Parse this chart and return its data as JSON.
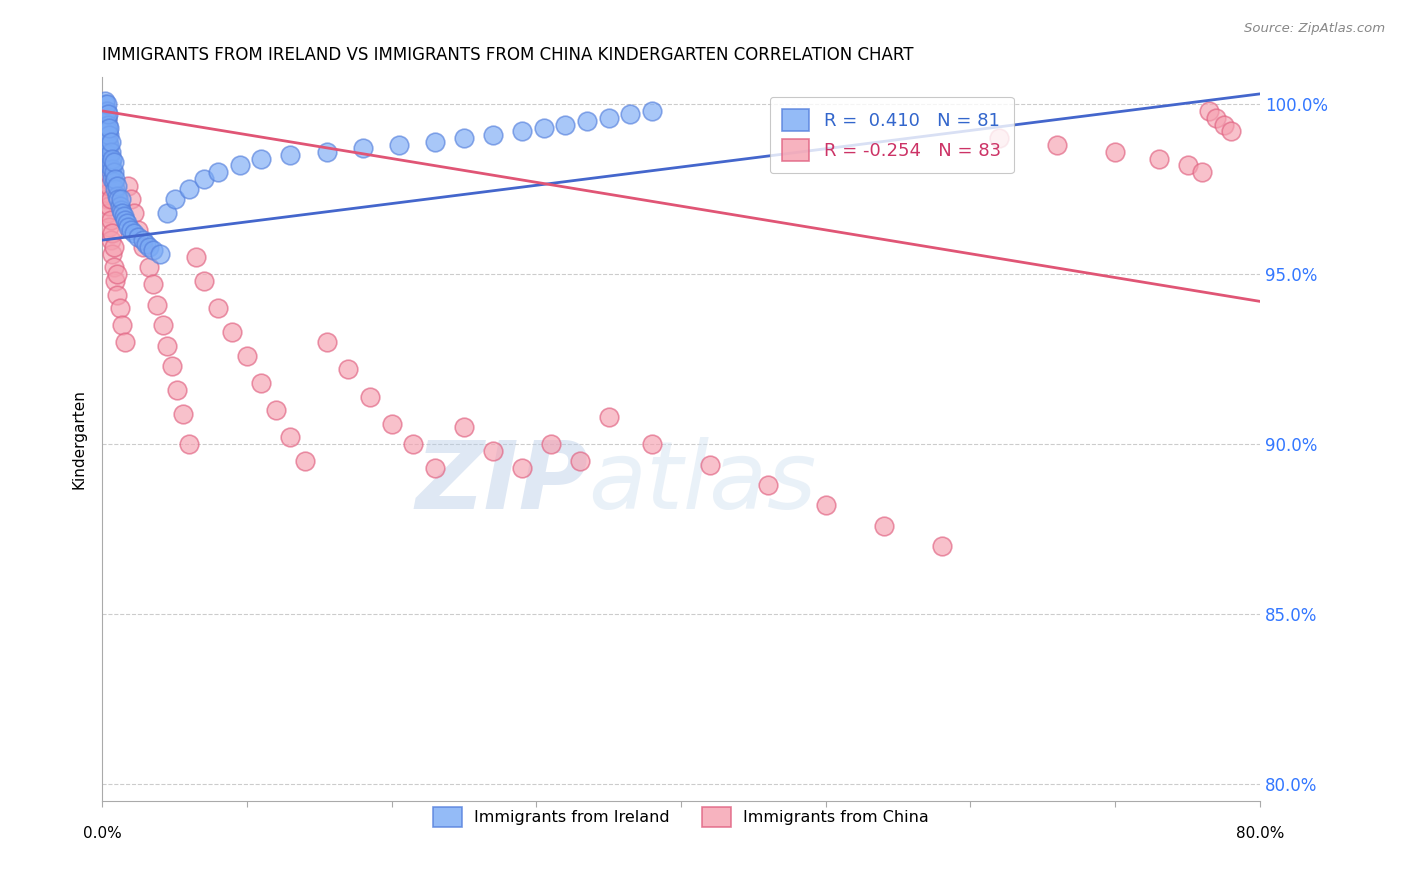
{
  "title": "IMMIGRANTS FROM IRELAND VS IMMIGRANTS FROM CHINA KINDERGARTEN CORRELATION CHART",
  "source": "Source: ZipAtlas.com",
  "ylabel": "Kindergarten",
  "xlim": [
    0.0,
    0.8
  ],
  "ylim": [
    0.795,
    1.008
  ],
  "yticks": [
    0.8,
    0.85,
    0.9,
    0.95,
    1.0
  ],
  "ytick_labels": [
    "80.0%",
    "85.0%",
    "90.0%",
    "95.0%",
    "100.0%"
  ],
  "watermark_zip": "ZIP",
  "watermark_atlas": "atlas",
  "ireland_color": "#7aaaf5",
  "china_color": "#f5a0b0",
  "ireland_edge_color": "#5580dd",
  "china_edge_color": "#e06080",
  "ireland_line_color": "#4466cc",
  "china_line_color": "#e05575",
  "ireland_R": 0.41,
  "ireland_N": 81,
  "china_R": -0.254,
  "china_N": 83,
  "legend_ireland_label": "Immigrants from Ireland",
  "legend_china_label": "Immigrants from China",
  "ireland_scatter_x": [
    0.001,
    0.001,
    0.001,
    0.001,
    0.002,
    0.002,
    0.002,
    0.002,
    0.002,
    0.002,
    0.002,
    0.003,
    0.003,
    0.003,
    0.003,
    0.003,
    0.003,
    0.003,
    0.004,
    0.004,
    0.004,
    0.004,
    0.004,
    0.004,
    0.005,
    0.005,
    0.005,
    0.005,
    0.005,
    0.006,
    0.006,
    0.006,
    0.006,
    0.007,
    0.007,
    0.007,
    0.008,
    0.008,
    0.008,
    0.009,
    0.009,
    0.01,
    0.01,
    0.011,
    0.012,
    0.013,
    0.013,
    0.014,
    0.015,
    0.016,
    0.017,
    0.018,
    0.02,
    0.022,
    0.025,
    0.028,
    0.03,
    0.032,
    0.035,
    0.04,
    0.045,
    0.05,
    0.06,
    0.07,
    0.08,
    0.095,
    0.11,
    0.13,
    0.155,
    0.18,
    0.205,
    0.23,
    0.25,
    0.27,
    0.29,
    0.305,
    0.32,
    0.335,
    0.35,
    0.365,
    0.38
  ],
  "ireland_scatter_y": [
    0.99,
    0.992,
    0.995,
    0.997,
    0.988,
    0.99,
    0.993,
    0.996,
    0.998,
    1.0,
    1.001,
    0.986,
    0.988,
    0.991,
    0.993,
    0.996,
    0.998,
    1.0,
    0.984,
    0.987,
    0.989,
    0.992,
    0.994,
    0.997,
    0.982,
    0.985,
    0.988,
    0.991,
    0.993,
    0.98,
    0.983,
    0.986,
    0.989,
    0.978,
    0.981,
    0.984,
    0.977,
    0.98,
    0.983,
    0.975,
    0.978,
    0.973,
    0.976,
    0.972,
    0.97,
    0.969,
    0.972,
    0.968,
    0.967,
    0.966,
    0.965,
    0.964,
    0.963,
    0.962,
    0.961,
    0.96,
    0.959,
    0.958,
    0.957,
    0.956,
    0.968,
    0.972,
    0.975,
    0.978,
    0.98,
    0.982,
    0.984,
    0.985,
    0.986,
    0.987,
    0.988,
    0.989,
    0.99,
    0.991,
    0.992,
    0.993,
    0.994,
    0.995,
    0.996,
    0.997,
    0.998
  ],
  "china_scatter_x": [
    0.001,
    0.001,
    0.002,
    0.002,
    0.002,
    0.002,
    0.003,
    0.003,
    0.003,
    0.003,
    0.003,
    0.004,
    0.004,
    0.004,
    0.004,
    0.005,
    0.005,
    0.005,
    0.005,
    0.006,
    0.006,
    0.006,
    0.007,
    0.007,
    0.008,
    0.008,
    0.009,
    0.01,
    0.01,
    0.012,
    0.014,
    0.016,
    0.018,
    0.02,
    0.022,
    0.025,
    0.028,
    0.032,
    0.035,
    0.038,
    0.042,
    0.045,
    0.048,
    0.052,
    0.056,
    0.06,
    0.065,
    0.07,
    0.08,
    0.09,
    0.1,
    0.11,
    0.12,
    0.13,
    0.14,
    0.155,
    0.17,
    0.185,
    0.2,
    0.215,
    0.23,
    0.25,
    0.27,
    0.29,
    0.31,
    0.33,
    0.35,
    0.38,
    0.42,
    0.46,
    0.5,
    0.54,
    0.58,
    0.62,
    0.66,
    0.7,
    0.73,
    0.75,
    0.76,
    0.765,
    0.77,
    0.775,
    0.78
  ],
  "china_scatter_y": [
    0.98,
    0.985,
    0.976,
    0.982,
    0.988,
    0.993,
    0.972,
    0.978,
    0.984,
    0.99,
    0.996,
    0.968,
    0.974,
    0.98,
    0.986,
    0.964,
    0.97,
    0.976,
    0.982,
    0.96,
    0.966,
    0.972,
    0.956,
    0.962,
    0.952,
    0.958,
    0.948,
    0.944,
    0.95,
    0.94,
    0.935,
    0.93,
    0.976,
    0.972,
    0.968,
    0.963,
    0.958,
    0.952,
    0.947,
    0.941,
    0.935,
    0.929,
    0.923,
    0.916,
    0.909,
    0.9,
    0.955,
    0.948,
    0.94,
    0.933,
    0.926,
    0.918,
    0.91,
    0.902,
    0.895,
    0.93,
    0.922,
    0.914,
    0.906,
    0.9,
    0.893,
    0.905,
    0.898,
    0.893,
    0.9,
    0.895,
    0.908,
    0.9,
    0.894,
    0.888,
    0.882,
    0.876,
    0.87,
    0.99,
    0.988,
    0.986,
    0.984,
    0.982,
    0.98,
    0.998,
    0.996,
    0.994,
    0.992
  ],
  "ireland_line_x": [
    0.0,
    0.8
  ],
  "ireland_line_y": [
    0.96,
    1.003
  ],
  "china_line_x": [
    0.0,
    0.8
  ],
  "china_line_y": [
    0.998,
    0.942
  ]
}
